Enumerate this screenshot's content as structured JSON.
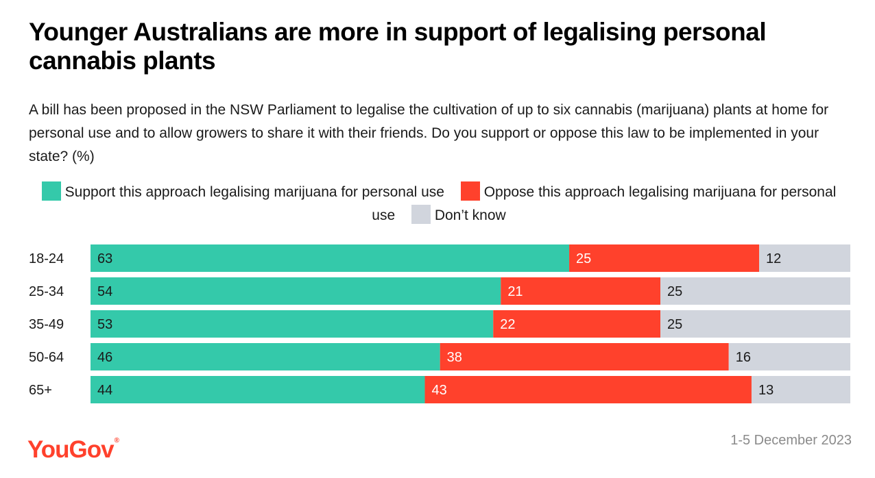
{
  "title": "Younger Australians are more in support of legalising personal cannabis plants",
  "subtitle": "A bill has been proposed in the NSW Parliament to legalise the cultivation of up to six cannabis (marijuana) plants at home for personal use and to allow growers to share it with their friends. Do you support or oppose this law to be implemented in your state? (%)",
  "brand": {
    "name": "YouGov",
    "mark": "®",
    "color": "#ff412c"
  },
  "date": "1-5 December 2023",
  "chart_data": {
    "type": "bar",
    "orientation": "horizontal",
    "stacked": true,
    "categories": [
      "18-24",
      "25-34",
      "35-49",
      "50-64",
      "65+"
    ],
    "series": [
      {
        "name": "Support this approach legalising marijuana for personal use",
        "color": "#34c9aa",
        "values": [
          63,
          54,
          53,
          46,
          44
        ]
      },
      {
        "name": "Oppose this approach legalising marijuana for personal use",
        "color": "#ff412c",
        "values": [
          25,
          21,
          22,
          38,
          43
        ]
      },
      {
        "name": "Don’t know",
        "color": "#d1d5dd",
        "values": [
          12,
          25,
          25,
          16,
          13
        ]
      }
    ],
    "xlim": [
      0,
      100
    ],
    "grid": false,
    "legend_position": "top"
  }
}
